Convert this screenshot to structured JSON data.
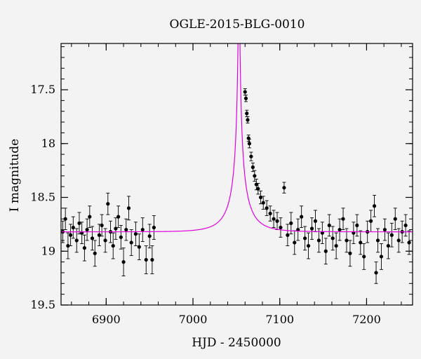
{
  "chart_data": {
    "type": "scatter",
    "title": "OGLE-2015-BLG-0010",
    "xlabel": "HJD - 2450000",
    "ylabel": "I magnitude",
    "xlim": [
      6848,
      7253
    ],
    "ylim": [
      19.5,
      17.07
    ],
    "y_inverted": true,
    "grid": false,
    "xticks": [
      {
        "value": 6900,
        "label": "6900"
      },
      {
        "value": 7000,
        "label": "7000"
      },
      {
        "value": 7100,
        "label": "7100"
      },
      {
        "value": 7200,
        "label": "7200"
      }
    ],
    "yticks": [
      {
        "value": 17.5,
        "label": "17.5"
      },
      {
        "value": 18.0,
        "label": "18"
      },
      {
        "value": 18.5,
        "label": "18.5"
      },
      {
        "value": 19.0,
        "label": "19"
      },
      {
        "value": 19.5,
        "label": "19.5"
      }
    ],
    "model": {
      "color": "#e000e0",
      "t0": 7053,
      "tE": 27,
      "u0": 0.022,
      "baseline_mag": 18.82,
      "blend_fraction": 0.2
    },
    "data_color": "#000000",
    "observations": [
      {
        "x": 6850,
        "y": 18.82,
        "err": 0.1
      },
      {
        "x": 6853,
        "y": 18.7,
        "err": 0.1
      },
      {
        "x": 6856,
        "y": 18.95,
        "err": 0.12
      },
      {
        "x": 6859,
        "y": 18.85,
        "err": 0.1
      },
      {
        "x": 6862,
        "y": 18.78,
        "err": 0.1
      },
      {
        "x": 6866,
        "y": 18.9,
        "err": 0.11
      },
      {
        "x": 6869,
        "y": 18.74,
        "err": 0.1
      },
      {
        "x": 6872,
        "y": 18.83,
        "err": 0.1
      },
      {
        "x": 6875,
        "y": 18.97,
        "err": 0.12
      },
      {
        "x": 6878,
        "y": 18.8,
        "err": 0.1
      },
      {
        "x": 6881,
        "y": 18.68,
        "err": 0.1
      },
      {
        "x": 6884,
        "y": 18.88,
        "err": 0.11
      },
      {
        "x": 6887,
        "y": 19.02,
        "err": 0.12
      },
      {
        "x": 6892,
        "y": 18.85,
        "err": 0.1
      },
      {
        "x": 6895,
        "y": 18.76,
        "err": 0.1
      },
      {
        "x": 6899,
        "y": 18.9,
        "err": 0.11
      },
      {
        "x": 6902,
        "y": 18.56,
        "err": 0.1
      },
      {
        "x": 6905,
        "y": 18.82,
        "err": 0.1
      },
      {
        "x": 6908,
        "y": 18.95,
        "err": 0.12
      },
      {
        "x": 6911,
        "y": 18.79,
        "err": 0.1
      },
      {
        "x": 6914,
        "y": 18.68,
        "err": 0.1
      },
      {
        "x": 6917,
        "y": 18.87,
        "err": 0.11
      },
      {
        "x": 6920,
        "y": 19.1,
        "err": 0.13
      },
      {
        "x": 6923,
        "y": 18.8,
        "err": 0.1
      },
      {
        "x": 6926,
        "y": 18.6,
        "err": 0.11
      },
      {
        "x": 6929,
        "y": 18.92,
        "err": 0.12
      },
      {
        "x": 6934,
        "y": 18.84,
        "err": 0.11
      },
      {
        "x": 6938,
        "y": 18.96,
        "err": 0.12
      },
      {
        "x": 6942,
        "y": 18.8,
        "err": 0.11
      },
      {
        "x": 6946,
        "y": 19.08,
        "err": 0.13
      },
      {
        "x": 6950,
        "y": 18.86,
        "err": 0.11
      },
      {
        "x": 6953,
        "y": 19.08,
        "err": 0.13
      },
      {
        "x": 6955,
        "y": 18.78,
        "err": 0.11
      },
      {
        "x": 7060,
        "y": 17.52,
        "err": 0.03
      },
      {
        "x": 7061,
        "y": 17.58,
        "err": 0.03
      },
      {
        "x": 7062,
        "y": 17.72,
        "err": 0.03
      },
      {
        "x": 7063,
        "y": 17.78,
        "err": 0.03
      },
      {
        "x": 7064,
        "y": 17.95,
        "err": 0.03
      },
      {
        "x": 7065,
        "y": 18.0,
        "err": 0.04
      },
      {
        "x": 7067,
        "y": 18.12,
        "err": 0.04
      },
      {
        "x": 7069,
        "y": 18.22,
        "err": 0.04
      },
      {
        "x": 7071,
        "y": 18.3,
        "err": 0.05
      },
      {
        "x": 7073,
        "y": 18.38,
        "err": 0.05
      },
      {
        "x": 7075,
        "y": 18.42,
        "err": 0.05
      },
      {
        "x": 7078,
        "y": 18.5,
        "err": 0.06
      },
      {
        "x": 7081,
        "y": 18.55,
        "err": 0.06
      },
      {
        "x": 7085,
        "y": 18.6,
        "err": 0.07
      },
      {
        "x": 7089,
        "y": 18.65,
        "err": 0.07
      },
      {
        "x": 7093,
        "y": 18.7,
        "err": 0.08
      },
      {
        "x": 7097,
        "y": 18.72,
        "err": 0.08
      },
      {
        "x": 7101,
        "y": 18.78,
        "err": 0.09
      },
      {
        "x": 7105,
        "y": 18.41,
        "err": 0.05
      },
      {
        "x": 7109,
        "y": 18.85,
        "err": 0.1
      },
      {
        "x": 7113,
        "y": 18.74,
        "err": 0.1
      },
      {
        "x": 7117,
        "y": 18.92,
        "err": 0.11
      },
      {
        "x": 7121,
        "y": 18.8,
        "err": 0.1
      },
      {
        "x": 7125,
        "y": 18.68,
        "err": 0.1
      },
      {
        "x": 7129,
        "y": 18.88,
        "err": 0.11
      },
      {
        "x": 7133,
        "y": 18.95,
        "err": 0.12
      },
      {
        "x": 7137,
        "y": 18.79,
        "err": 0.1
      },
      {
        "x": 7141,
        "y": 18.72,
        "err": 0.1
      },
      {
        "x": 7145,
        "y": 18.9,
        "err": 0.11
      },
      {
        "x": 7149,
        "y": 18.83,
        "err": 0.1
      },
      {
        "x": 7153,
        "y": 19.0,
        "err": 0.12
      },
      {
        "x": 7157,
        "y": 18.76,
        "err": 0.1
      },
      {
        "x": 7161,
        "y": 18.88,
        "err": 0.11
      },
      {
        "x": 7165,
        "y": 18.95,
        "err": 0.12
      },
      {
        "x": 7169,
        "y": 18.8,
        "err": 0.1
      },
      {
        "x": 7173,
        "y": 18.7,
        "err": 0.1
      },
      {
        "x": 7177,
        "y": 18.9,
        "err": 0.11
      },
      {
        "x": 7181,
        "y": 19.02,
        "err": 0.12
      },
      {
        "x": 7185,
        "y": 18.83,
        "err": 0.1
      },
      {
        "x": 7189,
        "y": 18.76,
        "err": 0.1
      },
      {
        "x": 7193,
        "y": 18.92,
        "err": 0.11
      },
      {
        "x": 7197,
        "y": 19.05,
        "err": 0.12
      },
      {
        "x": 7201,
        "y": 18.82,
        "err": 0.1
      },
      {
        "x": 7205,
        "y": 18.72,
        "err": 0.1
      },
      {
        "x": 7209,
        "y": 18.58,
        "err": 0.1
      },
      {
        "x": 7211,
        "y": 19.2,
        "err": 0.1
      },
      {
        "x": 7213,
        "y": 18.9,
        "err": 0.11
      },
      {
        "x": 7217,
        "y": 19.05,
        "err": 0.12
      },
      {
        "x": 7221,
        "y": 18.8,
        "err": 0.1
      },
      {
        "x": 7225,
        "y": 18.95,
        "err": 0.12
      },
      {
        "x": 7229,
        "y": 18.85,
        "err": 0.11
      },
      {
        "x": 7233,
        "y": 18.7,
        "err": 0.1
      },
      {
        "x": 7237,
        "y": 18.9,
        "err": 0.11
      },
      {
        "x": 7241,
        "y": 18.82,
        "err": 0.1
      },
      {
        "x": 7245,
        "y": 18.76,
        "err": 0.1
      },
      {
        "x": 7249,
        "y": 18.92,
        "err": 0.11
      }
    ]
  }
}
